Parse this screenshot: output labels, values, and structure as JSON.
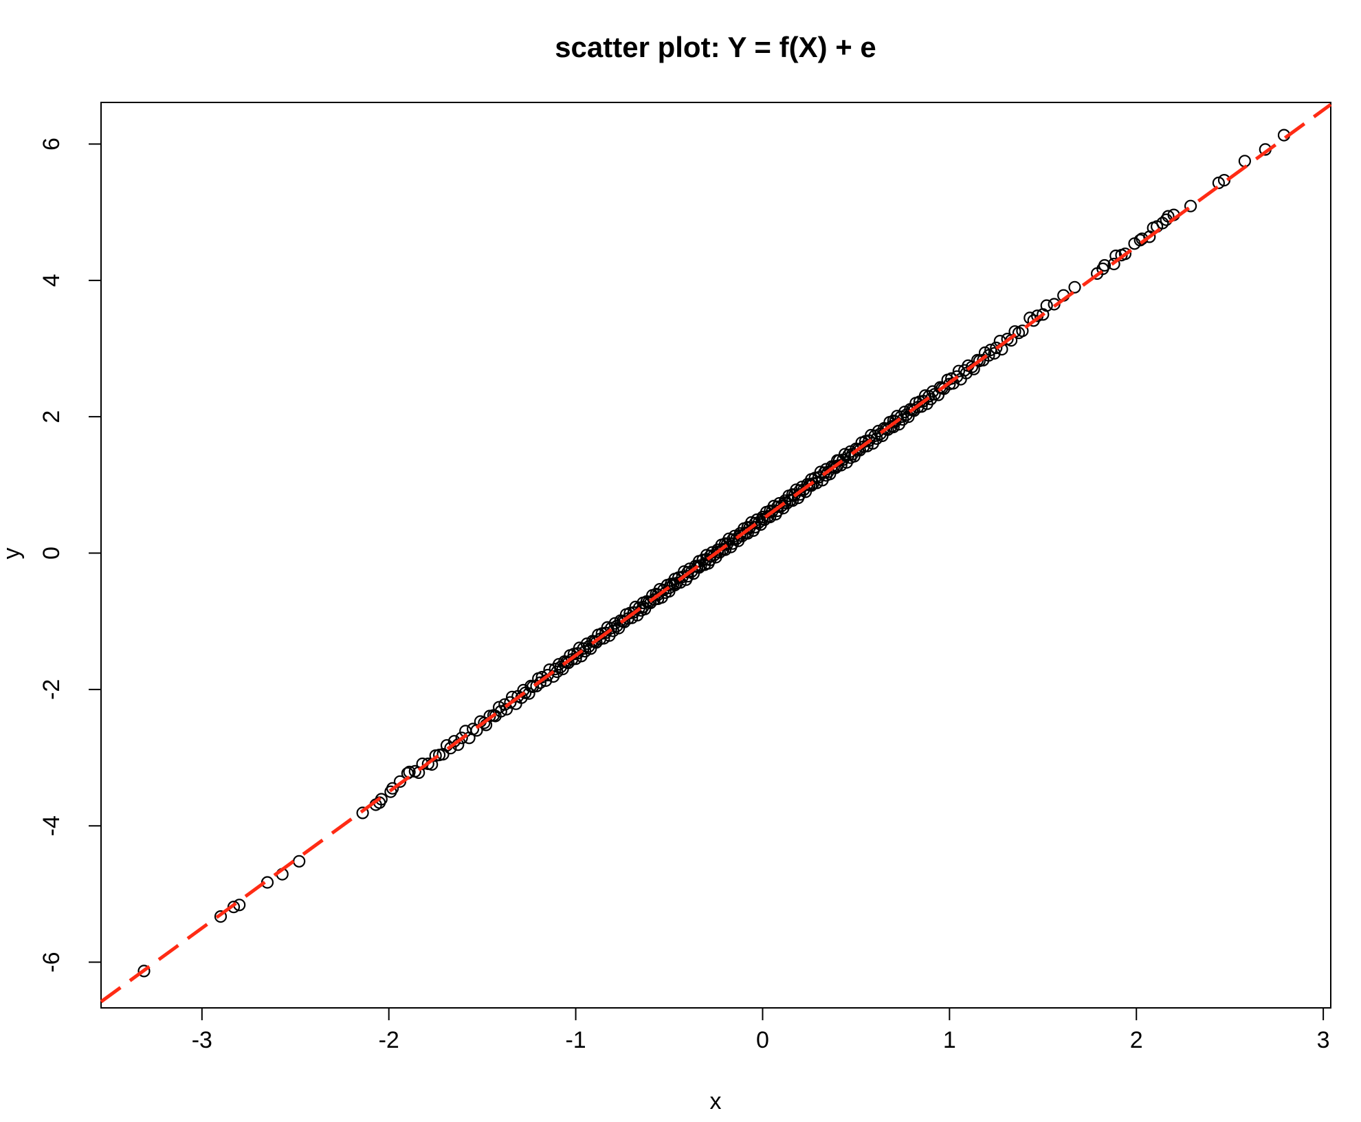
{
  "chart_data": {
    "type": "scatter",
    "title": "scatter plot: Y = f(X) + e",
    "xlabel": "x",
    "ylabel": "y",
    "x_ticks": [
      "-3",
      "-2",
      "-1",
      "0",
      "1",
      "2",
      "3"
    ],
    "x_tick_values": [
      -3,
      -2,
      -1,
      0,
      1,
      2,
      3
    ],
    "y_ticks": [
      "-6",
      "-4",
      "-2",
      "0",
      "2",
      "4",
      "6"
    ],
    "y_tick_values": [
      -6,
      -4,
      -2,
      0,
      2,
      4,
      6
    ],
    "xlim": [
      -3.54,
      3.04
    ],
    "ylim": [
      -6.67,
      6.61
    ],
    "grid": false,
    "legend": null,
    "point_style": {
      "shape": "open-circle",
      "stroke": "#000000",
      "radius": 8,
      "stroke_width": 2.2
    },
    "fit_line": {
      "slope": 2,
      "intercept": 0.5,
      "color": "#FF2B14",
      "style": "dashed",
      "width": 5,
      "dash": [
        35,
        17
      ]
    },
    "points": [
      [
        -3.31,
        -6.13
      ],
      [
        -2.9,
        -5.33
      ],
      [
        -2.83,
        -5.19
      ],
      [
        -2.8,
        -5.16
      ],
      [
        -2.65,
        -4.83
      ],
      [
        -2.57,
        -4.71
      ],
      [
        -2.48,
        -4.52
      ],
      [
        -2.14,
        -3.81
      ],
      [
        -2.07,
        -3.69
      ],
      [
        -2.05,
        -3.66
      ],
      [
        -2.04,
        -3.61
      ],
      [
        -1.99,
        -3.5
      ],
      [
        -1.98,
        -3.45
      ],
      [
        -1.94,
        -3.35
      ],
      [
        -1.9,
        -3.23
      ],
      [
        -1.89,
        -3.21
      ],
      [
        -1.86,
        -3.2
      ],
      [
        -1.84,
        -3.22
      ],
      [
        -1.82,
        -3.09
      ],
      [
        -1.79,
        -3.09
      ],
      [
        -1.77,
        -3.1
      ],
      [
        -1.75,
        -2.97
      ],
      [
        -1.73,
        -2.96
      ],
      [
        -1.71,
        -2.95
      ],
      [
        -1.69,
        -2.82
      ],
      [
        -1.67,
        -2.86
      ],
      [
        -1.65,
        -2.76
      ],
      [
        -1.63,
        -2.81
      ],
      [
        -1.61,
        -2.71
      ],
      [
        -1.59,
        -2.61
      ],
      [
        -1.57,
        -2.71
      ],
      [
        -1.55,
        -2.58
      ],
      [
        -1.53,
        -2.6
      ],
      [
        -1.51,
        -2.47
      ],
      [
        -1.49,
        -2.49
      ],
      [
        -1.48,
        -2.52
      ],
      [
        -1.46,
        -2.39
      ],
      [
        -1.44,
        -2.38
      ],
      [
        -1.43,
        -2.39
      ],
      [
        -1.41,
        -2.26
      ],
      [
        -1.4,
        -2.32
      ],
      [
        -1.38,
        -2.22
      ],
      [
        -1.37,
        -2.29
      ],
      [
        -1.35,
        -2.19
      ],
      [
        -1.34,
        -2.11
      ],
      [
        -1.32,
        -2.21
      ],
      [
        -1.31,
        -2.1
      ],
      [
        -1.29,
        -2.12
      ],
      [
        -1.28,
        -2.01
      ],
      [
        -1.27,
        -2.05
      ],
      [
        -1.25,
        -2.06
      ],
      [
        -1.24,
        -1.95
      ],
      [
        -1.23,
        -1.96
      ],
      [
        -1.21,
        -1.95
      ],
      [
        -1.2,
        -1.84
      ],
      [
        -1.19,
        -1.9
      ],
      [
        -1.18,
        -1.82
      ],
      [
        -1.16,
        -1.87
      ],
      [
        -1.15,
        -1.79
      ],
      [
        -1.14,
        -1.71
      ],
      [
        -1.12,
        -1.81
      ],
      [
        -1.11,
        -1.7
      ],
      [
        -1.1,
        -1.74
      ],
      [
        -1.09,
        -1.63
      ],
      [
        -1.08,
        -1.67
      ],
      [
        -1.07,
        -1.7
      ],
      [
        -1.06,
        -1.59
      ],
      [
        -1.05,
        -1.6
      ],
      [
        -1.04,
        -1.61
      ],
      [
        -1.03,
        -1.5
      ],
      [
        -1.02,
        -1.56
      ],
      [
        -1.01,
        -1.48
      ],
      [
        -1.0,
        -1.55
      ],
      [
        -0.99,
        -1.47
      ],
      [
        -0.98,
        -1.39
      ],
      [
        -0.97,
        -1.51
      ],
      [
        -0.96,
        -1.4
      ],
      [
        -0.95,
        -1.44
      ],
      [
        -0.94,
        -1.33
      ],
      [
        -0.93,
        -1.37
      ],
      [
        -0.92,
        -1.4
      ],
      [
        -0.91,
        -1.29
      ],
      [
        -0.9,
        -1.3
      ],
      [
        -0.89,
        -1.31
      ],
      [
        -0.88,
        -1.2
      ],
      [
        -0.87,
        -1.26
      ],
      [
        -0.86,
        -1.18
      ],
      [
        -0.85,
        -1.25
      ],
      [
        -0.84,
        -1.17
      ],
      [
        -0.83,
        -1.09
      ],
      [
        -0.82,
        -1.21
      ],
      [
        -0.81,
        -1.1
      ],
      [
        -0.8,
        -1.14
      ],
      [
        -0.79,
        -1.03
      ],
      [
        -0.78,
        -1.07
      ],
      [
        -0.77,
        -1.1
      ],
      [
        -0.76,
        -0.99
      ],
      [
        -0.75,
        -1.0
      ],
      [
        -0.74,
        -1.01
      ],
      [
        -0.73,
        -0.9
      ],
      [
        -0.72,
        -0.96
      ],
      [
        -0.71,
        -0.88
      ],
      [
        -0.7,
        -0.95
      ],
      [
        -0.69,
        -0.87
      ],
      [
        -0.68,
        -0.79
      ],
      [
        -0.67,
        -0.91
      ],
      [
        -0.66,
        -0.8
      ],
      [
        -0.65,
        -0.84
      ],
      [
        -0.64,
        -0.73
      ],
      [
        -0.64,
        -0.79
      ],
      [
        -0.63,
        -0.82
      ],
      [
        -0.62,
        -0.71
      ],
      [
        -0.61,
        -0.72
      ],
      [
        -0.6,
        -0.73
      ],
      [
        -0.59,
        -0.62
      ],
      [
        -0.58,
        -0.68
      ],
      [
        -0.57,
        -0.6
      ],
      [
        -0.56,
        -0.67
      ],
      [
        -0.56,
        -0.61
      ],
      [
        -0.55,
        -0.53
      ],
      [
        -0.54,
        -0.65
      ],
      [
        -0.53,
        -0.54
      ],
      [
        -0.52,
        -0.58
      ],
      [
        -0.51,
        -0.47
      ],
      [
        -0.5,
        -0.51
      ],
      [
        -0.5,
        -0.56
      ],
      [
        -0.49,
        -0.45
      ],
      [
        -0.48,
        -0.46
      ],
      [
        -0.47,
        -0.47
      ],
      [
        -0.47,
        -0.38
      ],
      [
        -0.46,
        -0.44
      ],
      [
        -0.45,
        -0.36
      ],
      [
        -0.44,
        -0.43
      ],
      [
        -0.43,
        -0.35
      ],
      [
        -0.42,
        -0.27
      ],
      [
        -0.41,
        -0.39
      ],
      [
        -0.4,
        -0.28
      ],
      [
        -0.4,
        -0.34
      ],
      [
        -0.39,
        -0.23
      ],
      [
        -0.38,
        -0.27
      ],
      [
        -0.37,
        -0.3
      ],
      [
        -0.36,
        -0.19
      ],
      [
        -0.35,
        -0.2
      ],
      [
        -0.34,
        -0.21
      ],
      [
        -0.34,
        -0.12
      ],
      [
        -0.33,
        -0.18
      ],
      [
        -0.32,
        -0.1
      ],
      [
        -0.31,
        -0.17
      ],
      [
        -0.3,
        -0.09
      ],
      [
        -0.3,
        -0.03
      ],
      [
        -0.29,
        -0.15
      ],
      [
        -0.28,
        -0.04
      ],
      [
        -0.28,
        -0.1
      ],
      [
        -0.27,
        0.01
      ],
      [
        -0.26,
        -0.03
      ],
      [
        -0.25,
        -0.06
      ],
      [
        -0.24,
        0.05
      ],
      [
        -0.24,
        0.02
      ],
      [
        -0.23,
        0.01
      ],
      [
        -0.22,
        0.12
      ],
      [
        -0.21,
        0.06
      ],
      [
        -0.2,
        0.14
      ],
      [
        -0.2,
        0.05
      ],
      [
        -0.19,
        0.13
      ],
      [
        -0.18,
        0.21
      ],
      [
        -0.17,
        0.09
      ],
      [
        -0.16,
        0.2
      ],
      [
        -0.16,
        0.14
      ],
      [
        -0.15,
        0.25
      ],
      [
        -0.14,
        0.21
      ],
      [
        -0.13,
        0.18
      ],
      [
        -0.12,
        0.29
      ],
      [
        -0.12,
        0.26
      ],
      [
        -0.11,
        0.25
      ],
      [
        -0.1,
        0.36
      ],
      [
        -0.09,
        0.3
      ],
      [
        -0.08,
        0.38
      ],
      [
        -0.08,
        0.29
      ],
      [
        -0.07,
        0.37
      ],
      [
        -0.06,
        0.45
      ],
      [
        -0.05,
        0.33
      ],
      [
        -0.04,
        0.44
      ],
      [
        -0.04,
        0.38
      ],
      [
        -0.03,
        0.49
      ],
      [
        -0.02,
        0.45
      ],
      [
        -0.01,
        0.42
      ],
      [
        0.0,
        0.53
      ],
      [
        0.0,
        0.5
      ],
      [
        0.01,
        0.49
      ],
      [
        0.02,
        0.6
      ],
      [
        0.03,
        0.54
      ],
      [
        0.04,
        0.62
      ],
      [
        0.04,
        0.53
      ],
      [
        0.05,
        0.61
      ],
      [
        0.06,
        0.69
      ],
      [
        0.07,
        0.57
      ],
      [
        0.08,
        0.68
      ],
      [
        0.08,
        0.62
      ],
      [
        0.09,
        0.73
      ],
      [
        0.1,
        0.69
      ],
      [
        0.11,
        0.66
      ],
      [
        0.12,
        0.77
      ],
      [
        0.12,
        0.74
      ],
      [
        0.13,
        0.73
      ],
      [
        0.14,
        0.84
      ],
      [
        0.15,
        0.78
      ],
      [
        0.16,
        0.86
      ],
      [
        0.16,
        0.77
      ],
      [
        0.17,
        0.85
      ],
      [
        0.18,
        0.93
      ],
      [
        0.19,
        0.81
      ],
      [
        0.2,
        0.92
      ],
      [
        0.2,
        0.86
      ],
      [
        0.21,
        0.97
      ],
      [
        0.22,
        0.93
      ],
      [
        0.23,
        0.9
      ],
      [
        0.24,
        1.01
      ],
      [
        0.25,
        1.0
      ],
      [
        0.26,
        0.99
      ],
      [
        0.26,
        1.08
      ],
      [
        0.27,
        1.02
      ],
      [
        0.28,
        1.1
      ],
      [
        0.29,
        1.03
      ],
      [
        0.3,
        1.11
      ],
      [
        0.31,
        1.19
      ],
      [
        0.32,
        1.07
      ],
      [
        0.33,
        1.18
      ],
      [
        0.34,
        1.14
      ],
      [
        0.34,
        1.23
      ],
      [
        0.35,
        1.19
      ],
      [
        0.36,
        1.16
      ],
      [
        0.37,
        1.27
      ],
      [
        0.38,
        1.26
      ],
      [
        0.39,
        1.25
      ],
      [
        0.4,
        1.36
      ],
      [
        0.4,
        1.28
      ],
      [
        0.41,
        1.36
      ],
      [
        0.42,
        1.29
      ],
      [
        0.43,
        1.37
      ],
      [
        0.44,
        1.45
      ],
      [
        0.45,
        1.33
      ],
      [
        0.46,
        1.44
      ],
      [
        0.47,
        1.4
      ],
      [
        0.47,
        1.49
      ],
      [
        0.48,
        1.45
      ],
      [
        0.49,
        1.42
      ],
      [
        0.5,
        1.53
      ],
      [
        0.51,
        1.52
      ],
      [
        0.52,
        1.51
      ],
      [
        0.53,
        1.62
      ],
      [
        0.54,
        1.56
      ],
      [
        0.55,
        1.64
      ],
      [
        0.56,
        1.57
      ],
      [
        0.57,
        1.65
      ],
      [
        0.58,
        1.73
      ],
      [
        0.59,
        1.61
      ],
      [
        0.6,
        1.72
      ],
      [
        0.61,
        1.68
      ],
      [
        0.62,
        1.79
      ],
      [
        0.63,
        1.75
      ],
      [
        0.64,
        1.72
      ],
      [
        0.65,
        1.83
      ],
      [
        0.66,
        1.82
      ],
      [
        0.67,
        1.81
      ],
      [
        0.68,
        1.92
      ],
      [
        0.69,
        1.86
      ],
      [
        0.7,
        1.94
      ],
      [
        0.7,
        1.85
      ],
      [
        0.71,
        1.93
      ],
      [
        0.72,
        2.01
      ],
      [
        0.73,
        1.89
      ],
      [
        0.74,
        2.0
      ],
      [
        0.75,
        1.96
      ],
      [
        0.76,
        2.07
      ],
      [
        0.77,
        2.03
      ],
      [
        0.78,
        2.0
      ],
      [
        0.79,
        2.11
      ],
      [
        0.8,
        2.1
      ],
      [
        0.81,
        2.09
      ],
      [
        0.82,
        2.2
      ],
      [
        0.83,
        2.14
      ],
      [
        0.84,
        2.22
      ],
      [
        0.85,
        2.15
      ],
      [
        0.86,
        2.23
      ],
      [
        0.87,
        2.31
      ],
      [
        0.88,
        2.19
      ],
      [
        0.89,
        2.3
      ],
      [
        0.9,
        2.26
      ],
      [
        0.91,
        2.37
      ],
      [
        0.92,
        2.33
      ],
      [
        0.94,
        2.32
      ],
      [
        0.95,
        2.43
      ],
      [
        0.96,
        2.42
      ],
      [
        0.97,
        2.41
      ],
      [
        0.99,
        2.54
      ],
      [
        1.0,
        2.48
      ],
      [
        1.01,
        2.56
      ],
      [
        1.02,
        2.49
      ],
      [
        1.04,
        2.59
      ],
      [
        1.05,
        2.67
      ],
      [
        1.06,
        2.55
      ],
      [
        1.08,
        2.68
      ],
      [
        1.09,
        2.64
      ],
      [
        1.1,
        2.75
      ],
      [
        1.12,
        2.73
      ],
      [
        1.13,
        2.7
      ],
      [
        1.15,
        2.83
      ],
      [
        1.16,
        2.82
      ],
      [
        1.18,
        2.83
      ],
      [
        1.19,
        2.94
      ],
      [
        1.21,
        2.9
      ],
      [
        1.22,
        2.98
      ],
      [
        1.24,
        2.93
      ],
      [
        1.25,
        3.01
      ],
      [
        1.27,
        3.11
      ],
      [
        1.28,
        2.99
      ],
      [
        1.31,
        3.14
      ],
      [
        1.33,
        3.12
      ],
      [
        1.35,
        3.25
      ],
      [
        1.37,
        3.23
      ],
      [
        1.39,
        3.26
      ],
      [
        1.43,
        3.45
      ],
      [
        1.45,
        3.41
      ],
      [
        1.47,
        3.48
      ],
      [
        1.5,
        3.5
      ],
      [
        1.52,
        3.63
      ],
      [
        1.56,
        3.65
      ],
      [
        1.61,
        3.78
      ],
      [
        1.67,
        3.9
      ],
      [
        1.79,
        4.1
      ],
      [
        1.82,
        4.17
      ],
      [
        1.83,
        4.22
      ],
      [
        1.88,
        4.24
      ],
      [
        1.89,
        4.36
      ],
      [
        1.92,
        4.37
      ],
      [
        1.94,
        4.39
      ],
      [
        1.99,
        4.54
      ],
      [
        2.02,
        4.59
      ],
      [
        2.03,
        4.61
      ],
      [
        2.07,
        4.64
      ],
      [
        2.09,
        4.77
      ],
      [
        2.11,
        4.79
      ],
      [
        2.14,
        4.84
      ],
      [
        2.16,
        4.89
      ],
      [
        2.17,
        4.94
      ],
      [
        2.2,
        4.96
      ],
      [
        2.29,
        5.09
      ],
      [
        2.44,
        5.43
      ],
      [
        2.47,
        5.47
      ],
      [
        2.58,
        5.75
      ],
      [
        2.69,
        5.92
      ],
      [
        2.79,
        6.13
      ]
    ]
  },
  "colors": {
    "background": "#FFFFFF",
    "axis": "#000000",
    "point_stroke": "#000000",
    "fit_line": "#FF2B14"
  }
}
